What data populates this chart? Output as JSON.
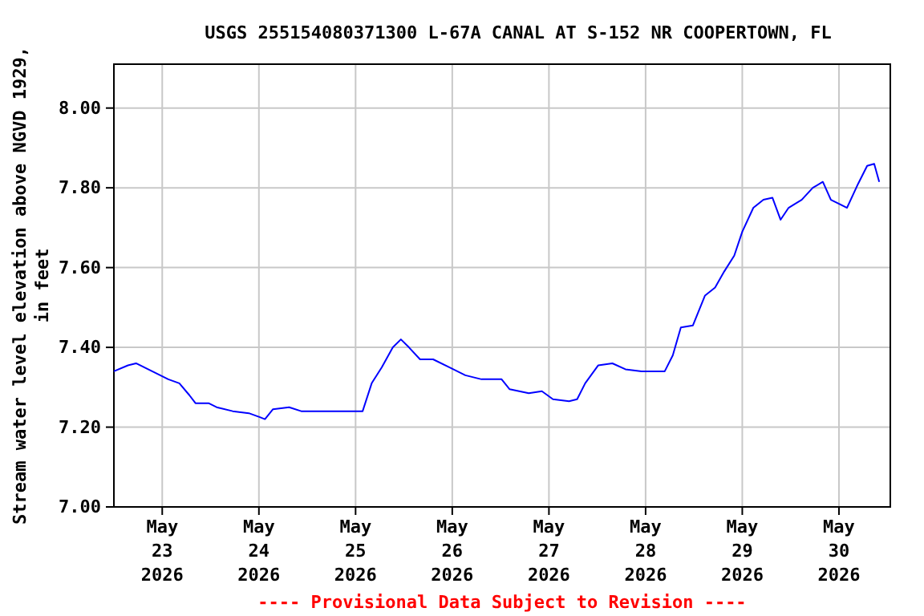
{
  "chart_data": {
    "type": "line",
    "title": "USGS 255154080371300 L-67A CANAL AT S-152 NR COOPERTOWN, FL",
    "ylabel": "Stream water level elevation above NGVD 1929, in feet",
    "annotations": [
      "---- Provisional Data Subject to Revision ----"
    ],
    "x": [
      "2026-05-22T12:00",
      "2026-05-22T15:30",
      "2026-05-22T17:30",
      "2026-05-22T21:30",
      "2026-05-23T01:30",
      "2026-05-23T04:15",
      "2026-05-23T06:45",
      "2026-05-23T08:15",
      "2026-05-23T11:30",
      "2026-05-23T13:30",
      "2026-05-23T17:30",
      "2026-05-23T21:30",
      "2026-05-24T00:15",
      "2026-05-24T01:30",
      "2026-05-24T03:30",
      "2026-05-24T07:30",
      "2026-05-24T10:30",
      "2026-05-24T13:30",
      "2026-05-24T17:15",
      "2026-05-24T21:15",
      "2026-05-25T00:00",
      "2026-05-25T01:45",
      "2026-05-25T04:00",
      "2026-05-25T06:30",
      "2026-05-25T09:15",
      "2026-05-25T11:15",
      "2026-05-25T13:15",
      "2026-05-25T16:00",
      "2026-05-25T19:15",
      "2026-05-25T23:15",
      "2026-05-26T03:15",
      "2026-05-26T07:15",
      "2026-05-26T12:15",
      "2026-05-26T14:15",
      "2026-05-26T19:00",
      "2026-05-26T22:15",
      "2026-05-27T01:00",
      "2026-05-27T05:00",
      "2026-05-27T07:00",
      "2026-05-27T09:00",
      "2026-05-27T12:15",
      "2026-05-27T15:45",
      "2026-05-27T19:00",
      "2026-05-27T23:00",
      "2026-05-28T02:45",
      "2026-05-28T04:45",
      "2026-05-28T06:45",
      "2026-05-28T08:45",
      "2026-05-28T11:45",
      "2026-05-28T14:45",
      "2026-05-28T17:15",
      "2026-05-28T19:30",
      "2026-05-28T22:00",
      "2026-05-29T00:00",
      "2026-05-29T02:45",
      "2026-05-29T05:15",
      "2026-05-29T07:30",
      "2026-05-29T09:30",
      "2026-05-29T11:30",
      "2026-05-29T14:45",
      "2026-05-29T17:30",
      "2026-05-29T20:00",
      "2026-05-29T22:00",
      "2026-05-30T02:00",
      "2026-05-30T04:45",
      "2026-05-30T07:00",
      "2026-05-30T08:45",
      "2026-05-30T10:00"
    ],
    "series": [
      {
        "color": "#0000ff",
        "values": [
          7.34,
          7.355,
          7.36,
          7.34,
          7.32,
          7.31,
          7.28,
          7.26,
          7.26,
          7.25,
          7.24,
          7.235,
          7.225,
          7.22,
          7.245,
          7.25,
          7.24,
          7.24,
          7.24,
          7.24,
          7.24,
          7.24,
          7.31,
          7.35,
          7.4,
          7.42,
          7.4,
          7.37,
          7.37,
          7.35,
          7.33,
          7.32,
          7.32,
          7.295,
          7.285,
          7.29,
          7.27,
          7.265,
          7.27,
          7.31,
          7.355,
          7.36,
          7.345,
          7.34,
          7.34,
          7.34,
          7.38,
          7.45,
          7.455,
          7.53,
          7.55,
          7.59,
          7.63,
          7.69,
          7.75,
          7.77,
          7.775,
          7.72,
          7.75,
          7.77,
          7.8,
          7.815,
          7.77,
          7.75,
          7.81,
          7.855,
          7.86,
          7.815
        ]
      }
    ],
    "xlim": [
      "2026-05-22T12:00",
      "2026-05-30T12:45"
    ],
    "xticks": [
      {
        "value": "2026-05-23",
        "label": "May 23 2026"
      },
      {
        "value": "2026-05-24",
        "label": "May 24 2026"
      },
      {
        "value": "2026-05-25",
        "label": "May 25 2026"
      },
      {
        "value": "2026-05-26",
        "label": "May 26 2026"
      },
      {
        "value": "2026-05-27",
        "label": "May 27 2026"
      },
      {
        "value": "2026-05-28",
        "label": "May 28 2026"
      },
      {
        "value": "2026-05-29",
        "label": "May 29 2026"
      },
      {
        "value": "2026-05-30",
        "label": "May 30 2026"
      }
    ],
    "ylim": [
      7.0,
      8.11
    ],
    "yticks": [
      {
        "value": 7.0,
        "label": "7.00"
      },
      {
        "value": 7.2,
        "label": "7.20"
      },
      {
        "value": 7.4,
        "label": "7.40"
      },
      {
        "value": 7.6,
        "label": "7.60"
      },
      {
        "value": 7.8,
        "label": "7.80"
      },
      {
        "value": 8.0,
        "label": "8.00"
      }
    ],
    "grid": true,
    "marker": "none",
    "line_style": "solid"
  }
}
